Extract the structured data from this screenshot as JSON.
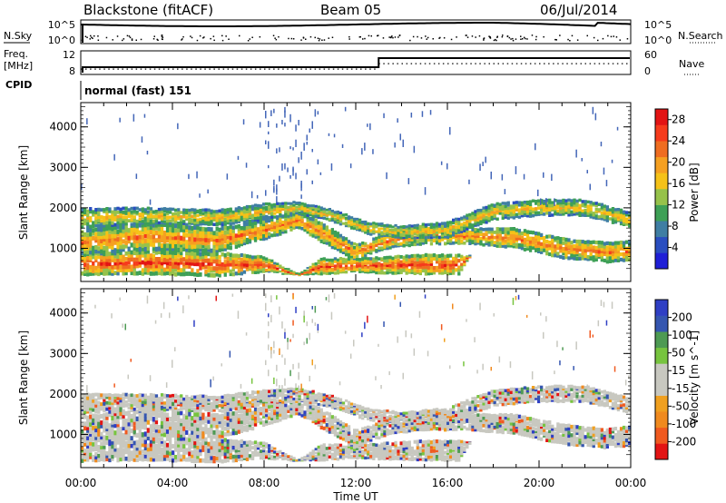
{
  "header": {
    "station": "Blackstone (fitACF)",
    "beam": "Beam 05",
    "date": "06/Jul/2014"
  },
  "side_labels": {
    "nsky": "N.Sky",
    "freq": "Freq.",
    "freq_unit": "[MHz]",
    "cpid": "CPID",
    "nsearch": "N.Search",
    "nave": "Nave",
    "cpid_text": "normal (fast) 151"
  },
  "noise_axis": {
    "left_ticks": [
      "10^5",
      "10^0"
    ],
    "right_ticks": [
      "10^5",
      "10^0"
    ]
  },
  "freq_axis": {
    "left_ticks": [
      "12",
      "8"
    ],
    "right_ticks": [
      "60",
      "0"
    ]
  },
  "colors": {
    "power": [
      "#1f1fd6",
      "#2a4ec0",
      "#3f7ea3",
      "#3ea056",
      "#96c24a",
      "#f5c218",
      "#f5a021",
      "#ef6d21",
      "#f63b1c",
      "#e31414"
    ],
    "velocity_pos": [
      "#2f3fc4",
      "#3556b0",
      "#4e9a53",
      "#77c43f"
    ],
    "velocity_neutral": "#c8c8c0",
    "velocity_neg": [
      "#f0a020",
      "#f08a1f",
      "#f05a20",
      "#e31414"
    ],
    "power_background": "#4366b8"
  },
  "chart_data": [
    {
      "type": "heatmap",
      "title": "Power",
      "xlabel": "",
      "ylabel": "Slant Range [km]",
      "xlim": [
        0,
        24
      ],
      "ylim": [
        180,
        4600
      ],
      "x_ticks": [
        "00:00",
        "04:00",
        "08:00",
        "12:00",
        "16:00",
        "20:00",
        "00:00"
      ],
      "y_ticks": [
        1000,
        2000,
        3000,
        4000
      ],
      "colorbar": {
        "label": "Power [dB]",
        "ticks": [
          4,
          8,
          12,
          16,
          20,
          24,
          28
        ],
        "range": [
          0,
          30
        ]
      },
      "bands": [
        {
          "name": "lower-strong",
          "points": [
            [
              0,
              600,
              280
            ],
            [
              3,
              650,
              300
            ],
            [
              6,
              600,
              300
            ],
            [
              8,
              600,
              200
            ],
            [
              9.5,
              350,
              0
            ],
            [
              10.5,
              550,
              200
            ],
            [
              12,
              580,
              180
            ],
            [
              13,
              580,
              200
            ],
            [
              15,
              600,
              250
            ],
            [
              16.5,
              600,
              250
            ],
            [
              17,
              800,
              0
            ]
          ],
          "peak": 26
        },
        {
          "name": "mid-strong",
          "points": [
            [
              0,
              1150,
              300
            ],
            [
              3,
              1300,
              350
            ],
            [
              6,
              1200,
              300
            ],
            [
              8,
              1450,
              250
            ],
            [
              9.5,
              1700,
              200
            ],
            [
              10.5,
              1400,
              250
            ],
            [
              12,
              900,
              200
            ],
            [
              13.5,
              1200,
              200
            ],
            [
              15,
              1350,
              250
            ],
            [
              17,
              1300,
              200
            ],
            [
              19,
              1250,
              250
            ],
            [
              21,
              1000,
              250
            ],
            [
              23,
              900,
              250
            ],
            [
              24,
              950,
              250
            ]
          ],
          "peak": 22
        },
        {
          "name": "upper",
          "points": [
            [
              0,
              1750,
              250
            ],
            [
              3,
              1800,
              200
            ],
            [
              6,
              1750,
              200
            ],
            [
              8,
              1900,
              200
            ],
            [
              9.5,
              2000,
              150
            ],
            [
              11,
              1800,
              150
            ],
            [
              12.5,
              1500,
              150
            ],
            [
              14,
              1400,
              150
            ],
            [
              16,
              1450,
              200
            ],
            [
              18,
              1900,
              200
            ],
            [
              20,
              2000,
              200
            ],
            [
              22,
              2000,
              200
            ],
            [
              24,
              1700,
              200
            ]
          ],
          "peak": 18
        }
      ]
    },
    {
      "type": "heatmap",
      "title": "Velocity",
      "xlabel": "Time UT",
      "ylabel": "Slant Range [km]",
      "xlim": [
        0,
        24
      ],
      "ylim": [
        180,
        4600
      ],
      "x_ticks": [
        "00:00",
        "04:00",
        "08:00",
        "12:00",
        "16:00",
        "20:00",
        "00:00"
      ],
      "y_ticks": [
        1000,
        2000,
        3000,
        4000
      ],
      "colorbar": {
        "label": "Velocity [m s^-1]",
        "ticks": [
          200,
          100,
          50,
          15,
          -15,
          -50,
          -100,
          -200
        ]
      }
    }
  ]
}
